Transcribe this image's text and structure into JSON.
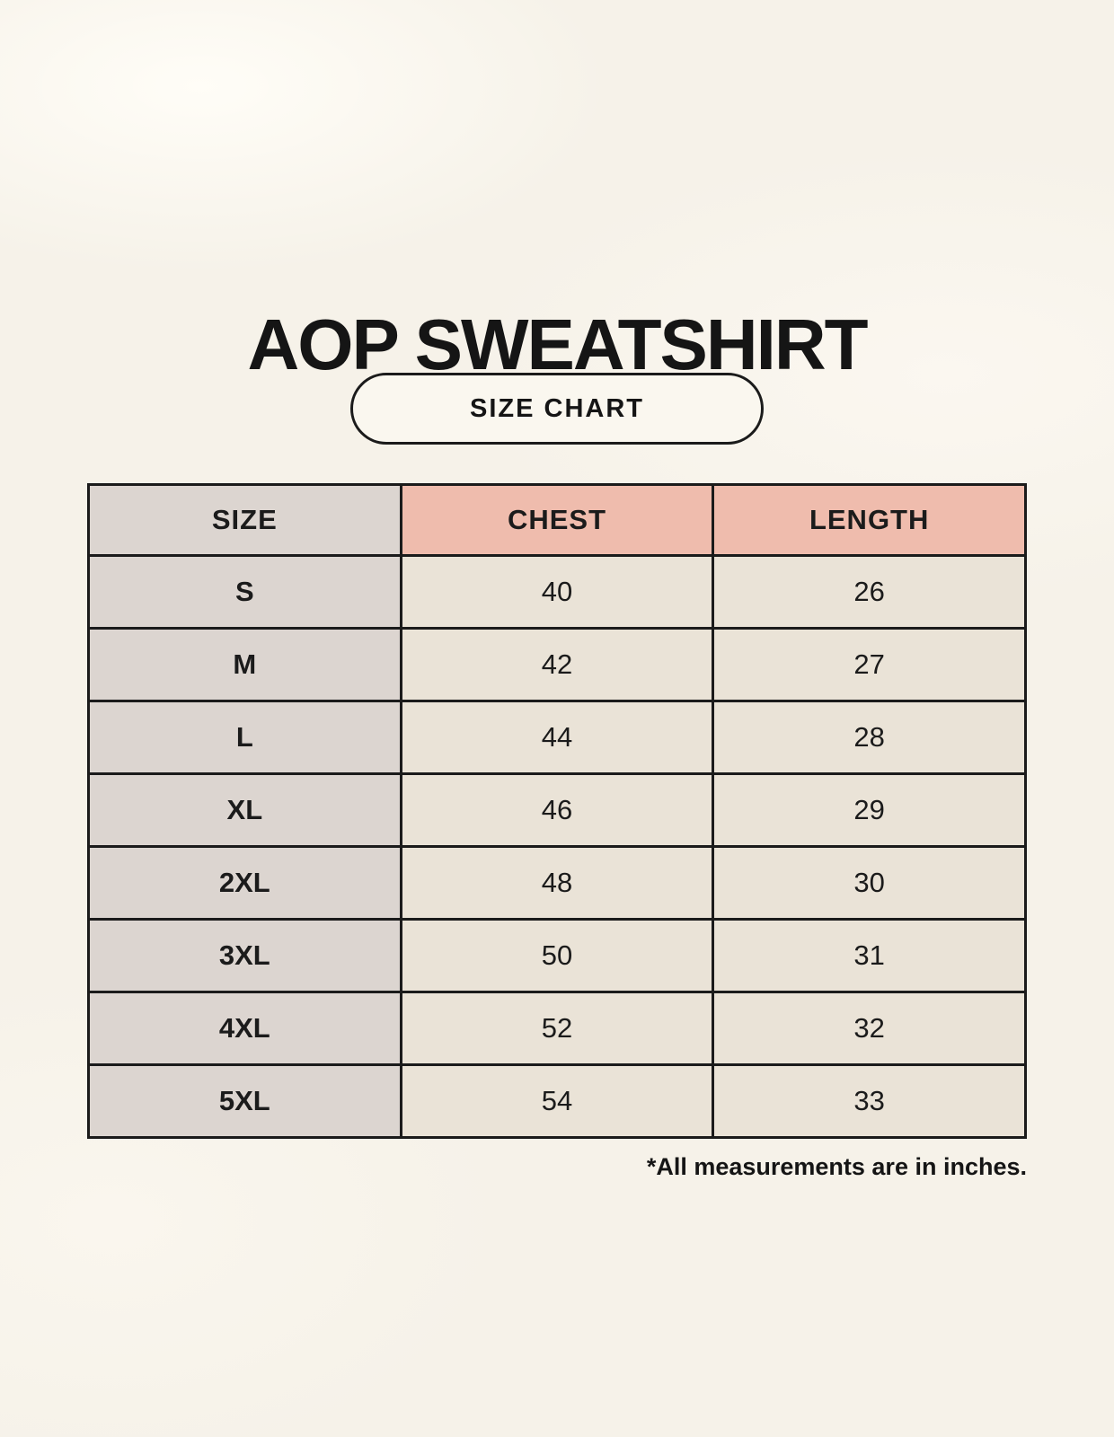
{
  "page": {
    "title": "AOP SWEATSHIRT",
    "badge_label": "SIZE CHART",
    "footnote": "*All measurements are in inches."
  },
  "colors": {
    "background": "#F6F2E9",
    "table_border": "#1B1B1B",
    "header_size_bg": "#DCD5D0",
    "header_measure_bg": "#EFBCAD",
    "size_column_bg": "#DCD5D0",
    "value_cell_bg": "#EAE3D7",
    "text": "#151515"
  },
  "chart_data": {
    "type": "table",
    "title": "AOP SWEATSHIRT",
    "subtitle": "SIZE CHART",
    "columns": [
      "SIZE",
      "CHEST",
      "LENGTH"
    ],
    "rows": [
      [
        "S",
        "40",
        "26"
      ],
      [
        "M",
        "42",
        "27"
      ],
      [
        "L",
        "44",
        "28"
      ],
      [
        "XL",
        "46",
        "29"
      ],
      [
        "2XL",
        "48",
        "30"
      ],
      [
        "3XL",
        "50",
        "31"
      ],
      [
        "4XL",
        "52",
        "32"
      ],
      [
        "5XL",
        "54",
        "33"
      ]
    ],
    "units_note": "*All measurements are in inches.",
    "layout_hints": {
      "header_row_colors": [
        "gray",
        "salmon",
        "salmon"
      ],
      "first_column_highlight": true,
      "grid": true
    }
  }
}
